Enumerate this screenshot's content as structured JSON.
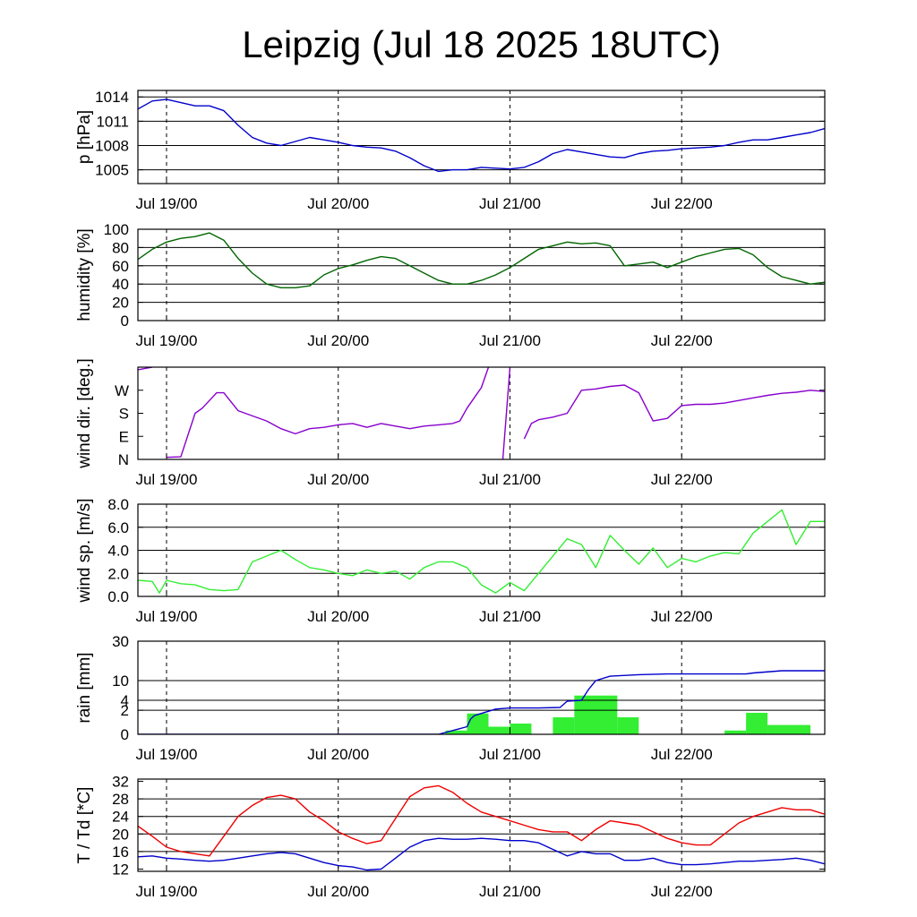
{
  "title": "Leipzig (Jul 18 2025 18UTC)",
  "chart_data": {
    "type": "line",
    "title": "Leipzig (Jul 18 2025 18UTC)",
    "x_unit": "hours since Jul 18 2025 18UTC",
    "x_range": [
      2,
      98
    ],
    "x_ticks": [
      {
        "hour": 6,
        "label": "Jul 19/00"
      },
      {
        "hour": 30,
        "label": "Jul 20/00"
      },
      {
        "hour": 54,
        "label": "Jul 21/00"
      },
      {
        "hour": 78,
        "label": "Jul 22/00"
      }
    ],
    "panels": [
      {
        "id": "pressure",
        "ylabel": "p [hPa]",
        "ylim": [
          1003.3,
          1014.8
        ],
        "yticks": [
          {
            "v": 1005,
            "label": "1005"
          },
          {
            "v": 1008,
            "label": "1008"
          },
          {
            "v": 1011,
            "label": "1011"
          },
          {
            "v": 1014,
            "label": "1014"
          }
        ],
        "grid_values": [
          1005,
          1008,
          1011,
          1014
        ],
        "series": [
          {
            "name": "pressure",
            "color": "#0000cc",
            "style": "line",
            "x": [
              2,
              4,
              6,
              8,
              10,
              12,
              14,
              16,
              18,
              20,
              22,
              24,
              26,
              28,
              30,
              32,
              34,
              36,
              38,
              40,
              42,
              44,
              46,
              48,
              50,
              52,
              54,
              56,
              58,
              60,
              62,
              64,
              66,
              68,
              70,
              72,
              74,
              76,
              78,
              80,
              82,
              84,
              86,
              88,
              90,
              92,
              94,
              96,
              98
            ],
            "y": [
              1012.5,
              1013.5,
              1013.7,
              1013.3,
              1012.9,
              1012.9,
              1012.3,
              1010.5,
              1009.0,
              1008.3,
              1008.0,
              1008.5,
              1009.0,
              1008.7,
              1008.4,
              1008.0,
              1007.8,
              1007.7,
              1007.3,
              1006.5,
              1005.5,
              1004.8,
              1005.0,
              1005.0,
              1005.3,
              1005.2,
              1005.1,
              1005.3,
              1006.0,
              1007.0,
              1007.5,
              1007.2,
              1006.9,
              1006.6,
              1006.5,
              1007.0,
              1007.3,
              1007.4,
              1007.6,
              1007.7,
              1007.8,
              1008.0,
              1008.4,
              1008.7,
              1008.7,
              1009.0,
              1009.3,
              1009.6,
              1010.1
            ]
          }
        ]
      },
      {
        "id": "humidity",
        "ylabel": "humidity [%]",
        "ylim": [
          0,
          100
        ],
        "yticks": [
          {
            "v": 0,
            "label": "0"
          },
          {
            "v": 20,
            "label": "20"
          },
          {
            "v": 40,
            "label": "40"
          },
          {
            "v": 60,
            "label": "60"
          },
          {
            "v": 80,
            "label": "80"
          },
          {
            "v": 100,
            "label": "100"
          }
        ],
        "grid_values": [
          20,
          40,
          60,
          80
        ],
        "series": [
          {
            "name": "humidity",
            "color": "#006600",
            "style": "line",
            "x": [
              2,
              4,
              6,
              8,
              10,
              12,
              14,
              16,
              18,
              20,
              22,
              24,
              26,
              28,
              30,
              32,
              34,
              36,
              38,
              40,
              42,
              44,
              46,
              48,
              50,
              52,
              54,
              56,
              58,
              60,
              62,
              64,
              66,
              68,
              70,
              72,
              74,
              76,
              78,
              80,
              82,
              84,
              86,
              88,
              90,
              92,
              94,
              96,
              98
            ],
            "y": [
              67,
              78,
              86,
              90,
              92,
              96,
              88,
              68,
              52,
              40,
              36,
              36,
              38,
              50,
              57,
              61,
              66,
              70,
              68,
              60,
              52,
              44,
              40,
              40,
              44,
              50,
              58,
              68,
              78,
              82,
              86,
              84,
              85,
              82,
              60,
              62,
              64,
              58,
              64,
              70,
              74,
              78,
              79,
              72,
              58,
              48,
              44,
              40,
              42
            ]
          }
        ]
      },
      {
        "id": "wind-direction",
        "ylabel": "wind dir. [deg.]",
        "ylim": [
          0,
          360
        ],
        "yticks": [
          {
            "v": 0,
            "label": "N"
          },
          {
            "v": 90,
            "label": "E"
          },
          {
            "v": 180,
            "label": "S"
          },
          {
            "v": 270,
            "label": "W"
          }
        ],
        "grid_values": [],
        "series": [
          {
            "name": "wind-direction",
            "color": "#8800cc",
            "style": "line",
            "x": [
              2,
              3,
              4,
              5,
              6,
              8,
              10,
              11,
              12,
              13,
              14,
              16,
              18,
              20,
              22,
              24,
              26,
              28,
              30,
              32,
              34,
              36,
              38,
              40,
              42,
              44,
              46,
              47,
              48,
              49,
              50,
              51,
              52,
              53,
              54,
              55,
              56,
              57,
              58,
              60,
              62,
              64,
              66,
              68,
              70,
              72,
              74,
              76,
              78,
              80,
              82,
              84,
              86,
              88,
              90,
              92,
              94,
              96,
              98
            ],
            "y": [
              350,
              355,
              360,
              null,
              8,
              10,
              180,
              200,
              230,
              260,
              260,
              190,
              170,
              150,
              120,
              100,
              120,
              125,
              135,
              140,
              125,
              140,
              130,
              120,
              130,
              135,
              140,
              150,
              200,
              240,
              280,
              360,
              null,
              0,
              360,
              null,
              80,
              140,
              155,
              165,
              180,
              270,
              275,
              285,
              290,
              260,
              150,
              160,
              210,
              215,
              215,
              220,
              230,
              240,
              250,
              258,
              262,
              270,
              265
            ]
          }
        ]
      },
      {
        "id": "wind-speed",
        "ylabel": "wind sp. [m/s]",
        "ylim": [
          0,
          8
        ],
        "yticks": [
          {
            "v": 0,
            "label": "0.0"
          },
          {
            "v": 2,
            "label": "2.0"
          },
          {
            "v": 4,
            "label": "4.0"
          },
          {
            "v": 6,
            "label": "6.0"
          },
          {
            "v": 8,
            "label": "8.0"
          }
        ],
        "grid_values": [
          2,
          4,
          6
        ],
        "series": [
          {
            "name": "wind-speed",
            "color": "#33ee33",
            "style": "line",
            "x": [
              2,
              4,
              5,
              6,
              8,
              10,
              12,
              14,
              16,
              18,
              20,
              22,
              24,
              26,
              28,
              30,
              32,
              34,
              36,
              38,
              40,
              42,
              44,
              46,
              48,
              50,
              52,
              54,
              56,
              58,
              60,
              62,
              64,
              66,
              68,
              70,
              72,
              74,
              76,
              78,
              80,
              82,
              84,
              86,
              88,
              90,
              92,
              93,
              94,
              96,
              98
            ],
            "y": [
              1.4,
              1.3,
              0.3,
              1.4,
              1.1,
              1.0,
              0.6,
              0.5,
              0.6,
              3.0,
              3.5,
              4.0,
              3.2,
              2.5,
              2.3,
              2.0,
              1.8,
              2.3,
              2.0,
              2.2,
              1.5,
              2.5,
              3.0,
              3.0,
              2.5,
              1.0,
              0.3,
              1.2,
              0.5,
              2.0,
              3.5,
              5.0,
              4.5,
              2.5,
              5.3,
              4.0,
              2.8,
              4.2,
              2.5,
              3.3,
              3.0,
              3.5,
              3.8,
              3.7,
              5.5,
              6.5,
              7.5,
              6.0,
              4.5,
              6.5,
              6.5
            ]
          }
        ]
      },
      {
        "id": "rain",
        "ylabel": "rain [mm]",
        "ylim": [
          0,
          30
        ],
        "scale": "sqrt",
        "yticks": [
          {
            "v": 0,
            "label": "0"
          },
          {
            "v": 2,
            "label": "2"
          },
          {
            "v": 4,
            "label": "4"
          },
          {
            "v": 10,
            "label": "10"
          },
          {
            "v": 30,
            "label": "30"
          }
        ],
        "grid_values": [
          2,
          4,
          10
        ],
        "bars": {
          "color": "#33ee33",
          "items": [
            {
              "start": 45,
              "end": 48,
              "value": 0.05
            },
            {
              "start": 48,
              "end": 51,
              "value": 1.5
            },
            {
              "start": 51,
              "end": 54,
              "value": 0.2
            },
            {
              "start": 54,
              "end": 57,
              "value": 0.4
            },
            {
              "start": 57,
              "end": 60,
              "value": 0.0
            },
            {
              "start": 60,
              "end": 63,
              "value": 1.0
            },
            {
              "start": 63,
              "end": 69,
              "value": 5.2
            },
            {
              "start": 69,
              "end": 72,
              "value": 1.0
            },
            {
              "start": 84,
              "end": 87,
              "value": 0.05
            },
            {
              "start": 87,
              "end": 90,
              "value": 1.6
            },
            {
              "start": 90,
              "end": 96,
              "value": 0.3
            }
          ]
        },
        "series": [
          {
            "name": "accumulated-rain",
            "color": "#0000cc",
            "style": "line",
            "x": [
              2,
              42,
              44,
              46,
              48,
              48.5,
              49,
              50,
              52,
              54,
              56,
              58,
              61,
              62,
              63,
              64,
              65,
              66,
              68,
              72,
              76,
              80,
              84,
              86,
              87,
              88,
              92,
              96,
              98
            ],
            "y": [
              0,
              0,
              0,
              0.05,
              0.2,
              0.8,
              1.2,
              1.5,
              2.2,
              2.4,
              2.4,
              2.4,
              2.5,
              3.8,
              3.9,
              4.0,
              7.0,
              10.0,
              11.7,
              12.3,
              12.6,
              12.6,
              12.6,
              12.6,
              12.6,
              13.0,
              14.0,
              14.0,
              14.0
            ]
          }
        ]
      },
      {
        "id": "temperature",
        "ylabel": "T / Td [*C]",
        "ylim": [
          11.5,
          32.5
        ],
        "yticks": [
          {
            "v": 12,
            "label": "12"
          },
          {
            "v": 16,
            "label": "16"
          },
          {
            "v": 20,
            "label": "20"
          },
          {
            "v": 24,
            "label": "24"
          },
          {
            "v": 28,
            "label": "28"
          },
          {
            "v": 32,
            "label": "32"
          }
        ],
        "grid_values": [
          16,
          20,
          24,
          28
        ],
        "series": [
          {
            "name": "temperature",
            "color": "#ee0000",
            "style": "line",
            "x": [
              2,
              4,
              6,
              8,
              10,
              12,
              14,
              16,
              18,
              20,
              22,
              24,
              26,
              28,
              30,
              32,
              34,
              36,
              38,
              40,
              42,
              44,
              46,
              48,
              50,
              52,
              54,
              56,
              58,
              60,
              62,
              64,
              66,
              68,
              70,
              72,
              74,
              76,
              78,
              80,
              82,
              84,
              86,
              88,
              90,
              92,
              94,
              96,
              98
            ],
            "y": [
              21.8,
              19.5,
              17.0,
              16.0,
              15.5,
              15.0,
              19.5,
              24.0,
              26.5,
              28.3,
              28.8,
              28.0,
              25.0,
              23.0,
              20.5,
              19.0,
              17.8,
              18.5,
              23.5,
              28.5,
              30.5,
              31.0,
              29.5,
              27.0,
              25.0,
              24.0,
              23.0,
              22.0,
              21.0,
              20.5,
              20.5,
              18.5,
              21.0,
              23.0,
              22.5,
              22.0,
              20.5,
              19.0,
              18.0,
              17.5,
              17.5,
              20.0,
              22.5,
              24.0,
              25.0,
              26.0,
              25.5,
              25.5,
              24.5
            ]
          },
          {
            "name": "dew-point",
            "color": "#0000cc",
            "style": "line",
            "x": [
              2,
              4,
              6,
              8,
              10,
              12,
              14,
              16,
              18,
              20,
              22,
              24,
              26,
              28,
              30,
              32,
              34,
              36,
              38,
              40,
              42,
              44,
              46,
              48,
              50,
              52,
              54,
              56,
              58,
              60,
              62,
              64,
              66,
              68,
              70,
              72,
              74,
              76,
              78,
              80,
              82,
              84,
              86,
              88,
              90,
              92,
              94,
              96,
              98
            ],
            "y": [
              14.8,
              15.0,
              14.5,
              14.3,
              14.0,
              13.8,
              14.0,
              14.5,
              15.0,
              15.5,
              15.8,
              15.5,
              14.5,
              13.5,
              12.8,
              12.5,
              11.8,
              12.0,
              14.5,
              17.0,
              18.5,
              19.0,
              18.8,
              18.8,
              19.0,
              18.8,
              18.5,
              18.5,
              18.0,
              16.5,
              15.0,
              16.0,
              15.5,
              15.5,
              14.0,
              14.0,
              14.5,
              13.5,
              13.0,
              13.0,
              13.2,
              13.5,
              13.8,
              13.8,
              14.0,
              14.2,
              14.5,
              14.0,
              13.2
            ]
          }
        ]
      }
    ]
  }
}
